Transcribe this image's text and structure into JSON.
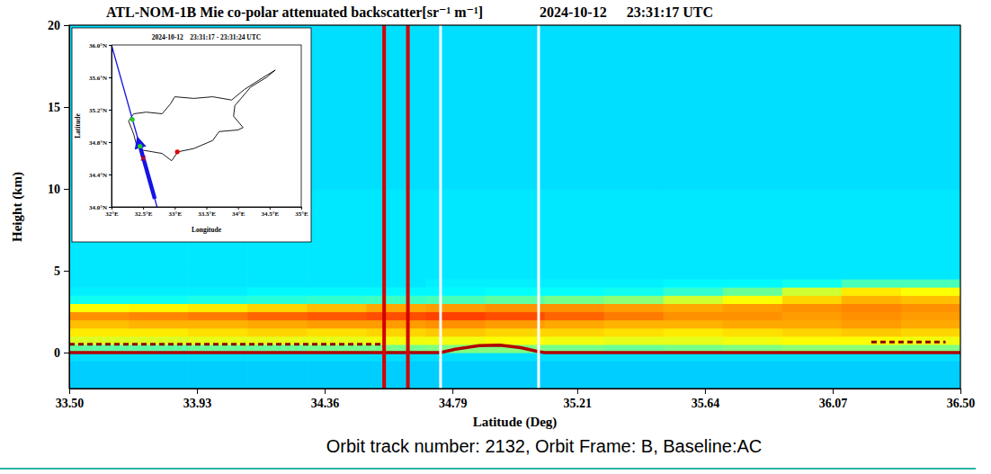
{
  "chart_data": [
    {
      "type": "heatmap",
      "title": "ATL-NOM-1B Mie co-polar attenuated backscatter[sr⁻¹ m⁻¹]",
      "title_date": "2024-10-12",
      "title_time": "23:31:17 UTC",
      "xlabel": "Latitude (Deg)",
      "ylabel": "Height (km)",
      "caption": "Orbit track number: 2132, Orbit Frame: B, Baseline:AC",
      "xlim": [
        33.5,
        36.5
      ],
      "ylim": [
        -2.2,
        20
      ],
      "xticks": [
        {
          "value": 33.5,
          "label": "33.50"
        },
        33.93,
        34.36,
        34.79,
        35.21,
        35.64,
        36.07,
        {
          "value": 36.5,
          "label": "36.50"
        }
      ],
      "yticks": [
        0,
        5,
        10,
        15,
        20
      ],
      "zlim": [
        -1e-06,
        8e-06
      ],
      "xbins": [
        33.5,
        33.7,
        33.9,
        34.1,
        34.3,
        34.5,
        34.7,
        34.9,
        35.1,
        35.3,
        35.5,
        35.7,
        35.9,
        36.1,
        36.3,
        36.5
      ],
      "ybins": [
        -2.2,
        -0.5,
        0,
        0.5,
        1,
        1.5,
        2,
        2.5,
        3,
        3.5,
        4,
        4.5,
        5,
        10,
        15,
        20
      ],
      "cells": [
        [
          1.8e-06,
          1.8e-06,
          1.8e-06,
          1.8e-06,
          1.8e-06,
          1.8e-06,
          1.8e-06,
          1.8e-06,
          1.8e-06,
          1.8e-06,
          1.8e-06,
          1.8e-06,
          1.8e-06,
          1.8e-06,
          1.8e-06
        ],
        [
          2e-06,
          2e-06,
          2e-06,
          2e-06,
          2e-06,
          2e-06,
          2e-06,
          2e-06,
          2e-06,
          2e-06,
          2e-06,
          2e-06,
          2e-06,
          2e-06,
          2e-06
        ],
        [
          3.2e-06,
          3.2e-06,
          3.3e-06,
          3.3e-06,
          3.4e-06,
          3.4e-06,
          3.5e-06,
          3.5e-06,
          3.4e-06,
          3.3e-06,
          3.4e-06,
          3.5e-06,
          3.6e-06,
          3.6e-06,
          3.5e-06
        ],
        [
          4.3e-06,
          4.3e-06,
          4.4e-06,
          4.4e-06,
          4.4e-06,
          4.5e-06,
          4.5e-06,
          4.6e-06,
          4.5e-06,
          4.4e-06,
          4.4e-06,
          4.5e-06,
          4.6e-06,
          4.6e-06,
          4.5e-06
        ],
        [
          4.8e-06,
          4.8e-06,
          4.9e-06,
          5e-06,
          4.9e-06,
          5e-06,
          5.1e-06,
          5e-06,
          5e-06,
          4.9e-06,
          4.8e-06,
          4.9e-06,
          5e-06,
          5.1e-06,
          5e-06
        ],
        [
          5.2e-06,
          5.3e-06,
          5.3e-06,
          5.4e-06,
          5.5e-06,
          5.5e-06,
          5.6e-06,
          5.5e-06,
          5.4e-06,
          5.3e-06,
          5.3e-06,
          5.4e-06,
          5.4e-06,
          5.5e-06,
          5.4e-06
        ],
        [
          5.6e-06,
          5.7e-06,
          5.8e-06,
          6e-06,
          6.1e-06,
          6.2e-06,
          6.3e-06,
          6.2e-06,
          6e-06,
          5.8e-06,
          5.6e-06,
          5.6e-06,
          5.5e-06,
          5.6e-06,
          5.5e-06
        ],
        [
          4.6e-06,
          4.7e-06,
          4.8e-06,
          5e-06,
          5.2e-06,
          5.4e-06,
          5.5e-06,
          5.6e-06,
          5.6e-06,
          5.5e-06,
          5.4e-06,
          5.5e-06,
          5.6e-06,
          5.7e-06,
          5.6e-06
        ],
        [
          2.5e-06,
          2.5e-06,
          2.6e-06,
          2.7e-06,
          2.8e-06,
          2.9e-06,
          3e-06,
          3.2e-06,
          3.4e-06,
          3.6e-06,
          4.2e-06,
          4.6e-06,
          5e-06,
          5.3e-06,
          5.2e-06
        ],
        [
          2.2e-06,
          2.2e-06,
          2.2e-06,
          2.3e-06,
          2.3e-06,
          2.3e-06,
          2.3e-06,
          2.4e-06,
          2.4e-06,
          2.5e-06,
          2.8e-06,
          3.3e-06,
          4.2e-06,
          4.8e-06,
          4.6e-06
        ],
        [
          2.1e-06,
          2.1e-06,
          2.1e-06,
          2.1e-06,
          2.1e-06,
          2.1e-06,
          2.2e-06,
          2.2e-06,
          2.2e-06,
          2.2e-06,
          2.3e-06,
          2.3e-06,
          2.5e-06,
          3e-06,
          3e-06
        ],
        [
          2.1e-06,
          2.1e-06,
          2.1e-06,
          2.1e-06,
          2.1e-06,
          2.1e-06,
          2.1e-06,
          2.1e-06,
          2.1e-06,
          2.1e-06,
          2.1e-06,
          2.1e-06,
          2.1e-06,
          2.1e-06,
          2.1e-06
        ],
        [
          2.1e-06,
          2.1e-06,
          2.1e-06,
          2.1e-06,
          2.1e-06,
          2.1e-06,
          2.1e-06,
          2.1e-06,
          2.1e-06,
          2.1e-06,
          2.1e-06,
          2.1e-06,
          2.1e-06,
          2.1e-06,
          2.1e-06
        ],
        [
          2e-06,
          2e-06,
          2e-06,
          2e-06,
          2e-06,
          2e-06,
          2e-06,
          2e-06,
          2e-06,
          2e-06,
          2e-06,
          2e-06,
          2e-06,
          2e-06,
          2e-06
        ],
        [
          2e-06,
          2e-06,
          2e-06,
          2e-06,
          2e-06,
          2e-06,
          2e-06,
          2e-06,
          2e-06,
          2e-06,
          2e-06,
          2e-06,
          2e-06,
          2e-06,
          2e-06
        ]
      ],
      "vlines": [
        {
          "x": 34.56,
          "color": "#d40000"
        },
        {
          "x": 34.64,
          "color": "#d40000"
        },
        {
          "x": 34.75,
          "color": "#ffffff"
        },
        {
          "x": 35.08,
          "color": "#ffffff"
        }
      ],
      "lines": [
        {
          "x": [
            33.5,
            34.75,
            34.8,
            34.88,
            34.95,
            35.02,
            35.08,
            35.1,
            36.5
          ],
          "values": [
            0,
            0,
            0.2,
            0.42,
            0.45,
            0.3,
            0.05,
            0,
            0
          ],
          "color": "#b00000",
          "line_style": "solid"
        },
        {
          "x": [
            33.5,
            34.55,
            34.56,
            36.2,
            36.45
          ],
          "values": [
            0.5,
            0.5,
            null,
            0.65,
            0.65
          ],
          "color": "#8b0000",
          "line_style": "dashed"
        }
      ]
    },
    {
      "type": "map",
      "title": "2024-10-12    23:31:17 - 23:31:24 UTC",
      "xlabel": "Longitude",
      "ylabel": "Latitude",
      "xlim": [
        32,
        35
      ],
      "ylim": [
        34,
        36
      ],
      "xticks": [
        {
          "value": 32,
          "label": "32°E"
        },
        {
          "value": 32.5,
          "label": "32.5°E"
        },
        {
          "value": 33,
          "label": "33°E"
        },
        {
          "value": 33.5,
          "label": "33.5°E"
        },
        {
          "value": 34,
          "label": "34°E"
        },
        {
          "value": 34.5,
          "label": "34.5°E"
        },
        {
          "value": 35,
          "label": "35°E"
        }
      ],
      "yticks": [
        {
          "value": 34,
          "label": "34.0°N"
        },
        {
          "value": 34.4,
          "label": "34.4°N"
        },
        {
          "value": 34.8,
          "label": "34.8°N"
        },
        {
          "value": 35.2,
          "label": "35.2°N"
        },
        {
          "value": 35.6,
          "label": "35.6°N"
        },
        {
          "value": 36,
          "label": "36.0°N"
        }
      ],
      "coastline": {
        "lon": [
          32.27,
          32.35,
          32.55,
          32.8,
          32.93,
          33.0,
          33.3,
          33.6,
          33.9,
          34.1,
          34.4,
          34.59,
          34.45,
          34.2,
          33.95,
          33.93,
          34.08,
          34.0,
          33.7,
          33.6,
          33.3,
          33.05,
          32.95,
          32.8,
          32.5,
          32.4,
          32.35,
          32.27
        ],
        "lat": [
          35.06,
          35.15,
          35.17,
          35.15,
          35.27,
          35.36,
          35.34,
          35.36,
          35.32,
          35.45,
          35.6,
          35.69,
          35.6,
          35.48,
          35.25,
          35.12,
          34.98,
          34.95,
          34.93,
          34.82,
          34.72,
          34.68,
          34.57,
          34.66,
          34.7,
          34.75,
          34.9,
          35.06
        ],
        "color": "#000000"
      },
      "track": {
        "lon": [
          32.72,
          32.0
        ],
        "lat": [
          34.0,
          36.0
        ],
        "color": "#1414e6"
      },
      "arrow": {
        "lon": [
          32.684,
          32.432
        ],
        "lat": [
          34.1,
          34.8
        ],
        "color": "#1414e6"
      },
      "points": [
        {
          "lon": 32.45,
          "lat": 34.75,
          "color": "#22cc22",
          "marker": "circle"
        },
        {
          "lon": 32.33,
          "lat": 35.08,
          "color": "#22cc22",
          "marker": "circle"
        },
        {
          "lon": 32.5,
          "lat": 34.6,
          "color": "#e00000",
          "marker": "x"
        },
        {
          "lon": 33.04,
          "lat": 34.68,
          "color": "#e00000",
          "marker": "circle"
        }
      ]
    }
  ]
}
